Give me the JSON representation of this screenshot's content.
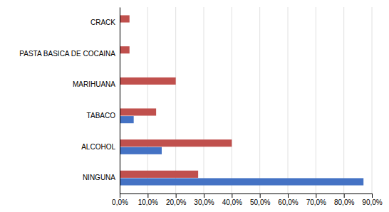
{
  "chart_data": {
    "type": "bar",
    "orientation": "horizontal",
    "categories": [
      "NINGUNA",
      "ALCOHOL",
      "TABACO",
      "MARIHUANA",
      "PASTA BASICA DE COCAINA",
      "CRACK"
    ],
    "series": [
      {
        "color": "#C0504D",
        "values": [
          28.0,
          40.0,
          13.0,
          20.0,
          3.5,
          3.5
        ]
      },
      {
        "color": "#4472C4",
        "values": [
          87.0,
          15.0,
          5.0,
          0.0,
          0.0,
          0.0
        ]
      }
    ],
    "xlim": [
      0,
      90
    ],
    "xticks": [
      {
        "value": 0,
        "label": "0,0%"
      },
      {
        "value": 10,
        "label": "10,0%"
      },
      {
        "value": 20,
        "label": "20,0%"
      },
      {
        "value": 30,
        "label": "30,0%"
      },
      {
        "value": 40,
        "label": "40,0%"
      },
      {
        "value": 50,
        "label": "50,0%"
      },
      {
        "value": 60,
        "label": "60,0%"
      },
      {
        "value": 70,
        "label": "70,0%"
      },
      {
        "value": 80,
        "label": "80,0%"
      },
      {
        "value": 90,
        "label": "90,0%"
      }
    ],
    "grid": true
  }
}
